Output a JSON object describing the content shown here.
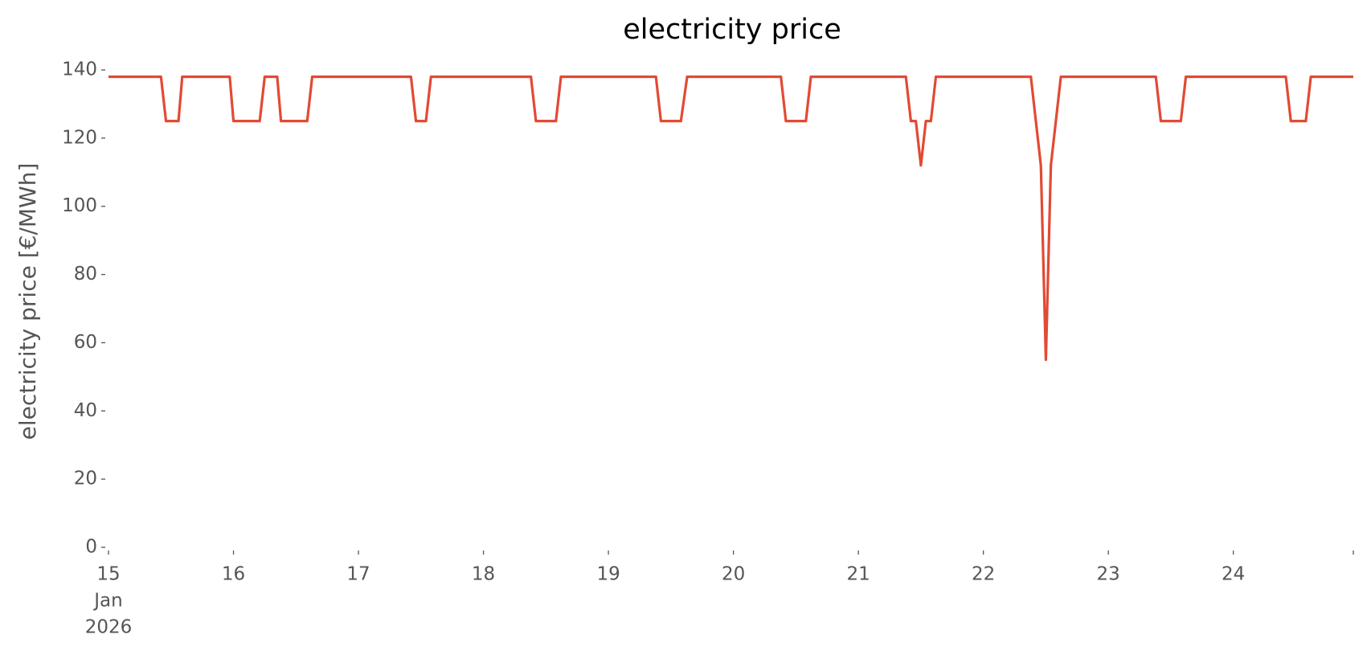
{
  "chart_data": {
    "type": "line",
    "title": "electricity price",
    "ylabel": "electricity price [€/MWh]",
    "x": [
      15,
      15.42,
      15.46,
      15.56,
      15.59,
      15.97,
      16.0,
      16.21,
      16.25,
      16.35,
      16.38,
      16.59,
      16.63,
      17.42,
      17.46,
      17.54,
      17.58,
      18.38,
      18.42,
      18.58,
      18.62,
      19.38,
      19.42,
      19.58,
      19.63,
      20.38,
      20.42,
      20.58,
      20.62,
      21.38,
      21.42,
      21.46,
      21.5,
      21.54,
      21.58,
      21.62,
      22.38,
      22.46,
      22.5,
      22.54,
      22.62,
      23.38,
      23.42,
      23.58,
      23.62,
      24.42,
      24.46,
      24.58,
      24.62,
      24.96
    ],
    "series": [
      {
        "name": "electricity price",
        "color": "#e24a33",
        "values": [
          138,
          138,
          125,
          125,
          138,
          138,
          125,
          125,
          138,
          138,
          125,
          125,
          138,
          138,
          125,
          125,
          138,
          138,
          125,
          125,
          138,
          138,
          125,
          125,
          138,
          138,
          125,
          125,
          138,
          138,
          125,
          125,
          112,
          125,
          125,
          138,
          138,
          112,
          55,
          112,
          138,
          138,
          125,
          125,
          138,
          138,
          125,
          125,
          138,
          138
        ]
      }
    ],
    "xlim": [
      15,
      24.96
    ],
    "xticks": [
      15,
      16,
      17,
      18,
      19,
      20,
      21,
      22,
      23,
      24,
      {
        "value": 24.96,
        "label": ""
      }
    ],
    "xtick_sublabels": [
      "Jan",
      "2026"
    ],
    "ylim": [
      0,
      140
    ],
    "yticks": [
      0,
      20,
      40,
      60,
      80,
      100,
      120,
      140
    ],
    "grid": false
  }
}
